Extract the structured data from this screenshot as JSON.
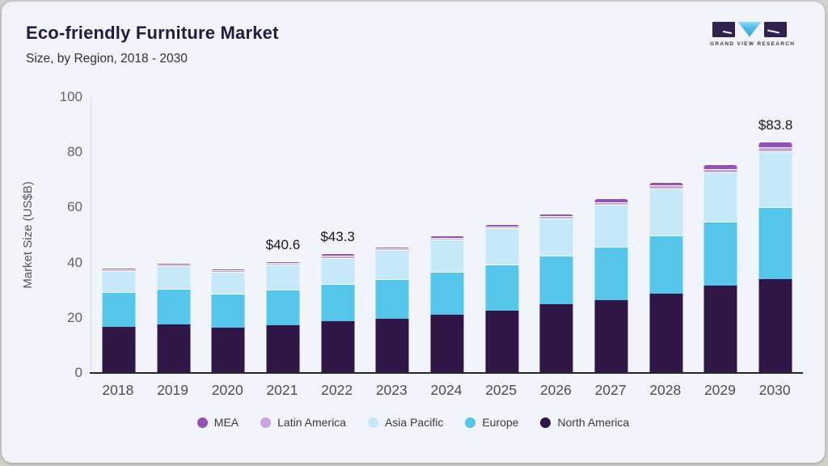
{
  "header": {
    "title": "Eco-friendly Furniture Market",
    "subtitle": "Size, by Region, 2018 - 2030"
  },
  "logo": {
    "text": "GRAND VIEW RESEARCH",
    "mark_colors": {
      "square": "#32214f",
      "triangle": "#55c0e6"
    }
  },
  "chart_data": {
    "type": "bar",
    "stacked": true,
    "title": "Eco-friendly Furniture Market Size, by Region, 2018 - 2030",
    "xlabel": "",
    "ylabel": "Market Size (US$B)",
    "ylim": [
      0,
      100
    ],
    "y_ticks": [
      0,
      20,
      40,
      60,
      80,
      100
    ],
    "grid": false,
    "legend_position": "bottom",
    "categories": [
      "2018",
      "2019",
      "2020",
      "2021",
      "2022",
      "2023",
      "2024",
      "2025",
      "2026",
      "2027",
      "2028",
      "2029",
      "2030"
    ],
    "series": [
      {
        "name": "North America",
        "color": "#2e1746",
        "values": [
          16.7,
          17.6,
          16.4,
          17.3,
          18.8,
          19.6,
          21.1,
          22.6,
          24.9,
          26.4,
          28.7,
          31.7,
          34.0
        ]
      },
      {
        "name": "Europe",
        "color": "#54c6ea",
        "values": [
          12.6,
          12.9,
          12.3,
          12.9,
          13.5,
          14.4,
          15.6,
          16.7,
          17.6,
          19.3,
          21.2,
          23.1,
          26.0
        ]
      },
      {
        "name": "Asia Pacific",
        "color": "#c6e9f9",
        "values": [
          7.7,
          8.2,
          8.1,
          9.1,
          9.3,
          10.5,
          11.7,
          13.2,
          13.5,
          15.3,
          17.0,
          17.9,
          20.3
        ]
      },
      {
        "name": "Latin America",
        "color": "#c9a3dd",
        "values": [
          0.6,
          0.6,
          0.5,
          0.7,
          0.9,
          0.7,
          0.7,
          0.7,
          1.0,
          1.0,
          1.1,
          1.3,
          1.6
        ]
      },
      {
        "name": "MEA",
        "color": "#9452b8",
        "values": [
          0.6,
          0.6,
          0.5,
          0.6,
          0.8,
          0.6,
          0.7,
          0.7,
          0.9,
          1.3,
          1.2,
          1.7,
          1.9
        ]
      }
    ],
    "totals": [
      38.2,
      39.9,
      37.8,
      40.6,
      43.3,
      45.8,
      49.8,
      53.9,
      57.9,
      63.3,
      69.2,
      75.7,
      83.8
    ],
    "annotations": [
      {
        "category": "2021",
        "label": "$40.6"
      },
      {
        "category": "2022",
        "label": "$43.3"
      },
      {
        "category": "2030",
        "label": "$83.8"
      }
    ],
    "legend_order": [
      "MEA",
      "Latin America",
      "Asia Pacific",
      "Europe",
      "North America"
    ]
  }
}
